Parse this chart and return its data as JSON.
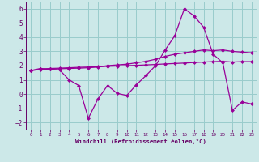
{
  "xlabel": "Windchill (Refroidissement éolien,°C)",
  "bg_color": "#cce8e8",
  "grid_color": "#99cccc",
  "line_color": "#990099",
  "xlim": [
    -0.5,
    23.5
  ],
  "ylim": [
    -2.5,
    6.5
  ],
  "yticks": [
    -2,
    -1,
    0,
    1,
    2,
    3,
    4,
    5,
    6
  ],
  "xticks": [
    0,
    1,
    2,
    3,
    4,
    5,
    6,
    7,
    8,
    9,
    10,
    11,
    12,
    13,
    14,
    15,
    16,
    17,
    18,
    19,
    20,
    21,
    22,
    23
  ],
  "line1_x": [
    0,
    1,
    2,
    3,
    4,
    5,
    6,
    7,
    8,
    9,
    10,
    11,
    12,
    13,
    14,
    15,
    16,
    17,
    18,
    19,
    20,
    21,
    22,
    23
  ],
  "line1_y": [
    1.65,
    1.75,
    1.8,
    1.82,
    1.85,
    1.88,
    1.9,
    1.92,
    1.95,
    1.97,
    2.0,
    2.02,
    2.05,
    2.08,
    2.12,
    2.15,
    2.18,
    2.22,
    2.25,
    2.28,
    2.3,
    2.25,
    2.28,
    2.28
  ],
  "line2_x": [
    0,
    1,
    2,
    3,
    4,
    5,
    6,
    7,
    8,
    9,
    10,
    11,
    12,
    13,
    14,
    15,
    16,
    17,
    18,
    19,
    20,
    21,
    22,
    23
  ],
  "line2_y": [
    1.65,
    1.72,
    1.75,
    1.78,
    1.8,
    1.82,
    1.85,
    1.9,
    2.0,
    2.05,
    2.1,
    2.2,
    2.3,
    2.45,
    2.65,
    2.8,
    2.9,
    3.0,
    3.1,
    3.05,
    3.1,
    3.0,
    2.95,
    2.9
  ],
  "line3_x": [
    0,
    1,
    2,
    3,
    4,
    5,
    6,
    7,
    8,
    9,
    10,
    11,
    12,
    13,
    14,
    15,
    16,
    17,
    18,
    19,
    20,
    21,
    22,
    23
  ],
  "line3_y": [
    1.65,
    1.8,
    1.75,
    1.7,
    1.0,
    0.6,
    -1.7,
    -0.35,
    0.6,
    0.05,
    -0.1,
    0.65,
    1.3,
    2.0,
    3.1,
    4.1,
    6.0,
    5.5,
    4.7,
    2.8,
    2.2,
    -1.15,
    -0.55,
    -0.7
  ],
  "markersize": 2.5,
  "linewidth": 0.9
}
